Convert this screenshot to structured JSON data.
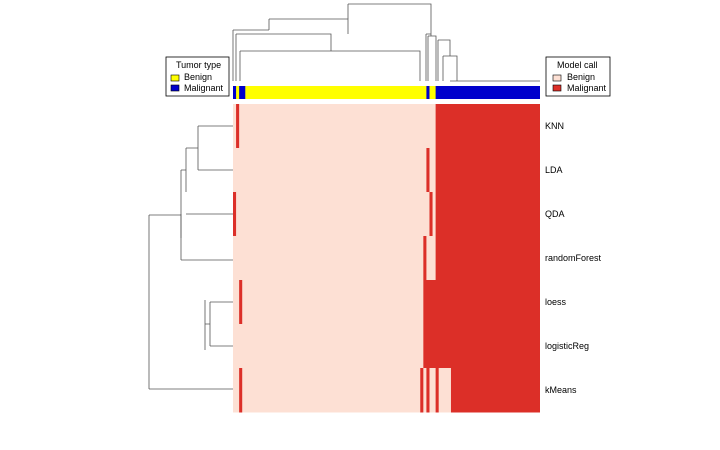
{
  "chart_data": {
    "type": "heatmap",
    "title": "",
    "xlabel": "",
    "ylabel": "",
    "rows": [
      "KNN",
      "LDA",
      "QDA",
      "randomForest",
      "loess",
      "logisticReg",
      "kMeans"
    ],
    "n_samples": 100,
    "values_encoding": "0 = Benign, 1 = Malignant",
    "cell_colors": {
      "Benign": "#fde0d4",
      "Malignant": "#dc2f28"
    },
    "tumor_type": {
      "n_samples": 100,
      "benign_color": "#ffff00",
      "malignant_color": "#0000cc",
      "malignant_runs": [
        [
          0,
          0
        ],
        [
          2,
          3
        ],
        [
          63,
          63
        ],
        [
          66,
          99
        ]
      ]
    },
    "model_calls": [
      {
        "model": "KNN",
        "malignant_runs": [
          [
            1,
            1
          ],
          [
            66,
            99
          ]
        ]
      },
      {
        "model": "LDA",
        "malignant_runs": [
          [
            63,
            63
          ],
          [
            66,
            99
          ]
        ]
      },
      {
        "model": "QDA",
        "malignant_runs": [
          [
            0,
            0
          ],
          [
            64,
            64
          ],
          [
            66,
            99
          ]
        ]
      },
      {
        "model": "randomForest",
        "malignant_runs": [
          [
            62,
            62
          ],
          [
            66,
            99
          ]
        ]
      },
      {
        "model": "loess",
        "malignant_runs": [
          [
            2,
            2
          ],
          [
            62,
            99
          ]
        ]
      },
      {
        "model": "logisticReg",
        "malignant_runs": [
          [
            62,
            99
          ]
        ]
      },
      {
        "model": "kMeans",
        "malignant_runs": [
          [
            2,
            2
          ],
          [
            61,
            61
          ],
          [
            63,
            63
          ],
          [
            66,
            66
          ],
          [
            71,
            99
          ]
        ]
      }
    ]
  },
  "legends": {
    "tumor_type": {
      "title": "Tumor type",
      "items": [
        {
          "label": "Benign",
          "color": "#ffff00"
        },
        {
          "label": "Malignant",
          "color": "#0000cc"
        }
      ]
    },
    "model_call": {
      "title": "Model call",
      "items": [
        {
          "label": "Benign",
          "color": "#fde0d4"
        },
        {
          "label": "Malignant",
          "color": "#dc2f28"
        }
      ]
    }
  }
}
